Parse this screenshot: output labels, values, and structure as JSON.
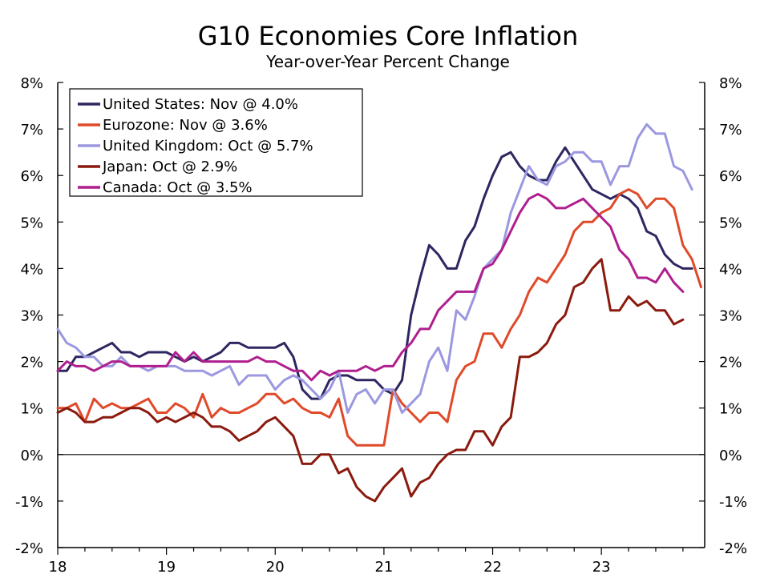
{
  "chart_data": {
    "type": "line",
    "title": "G10 Economies Core Inflation",
    "subtitle": "Year-over-Year Percent Change",
    "xlabel": "",
    "ylabel": "",
    "ylim": [
      -2,
      8
    ],
    "xlim": [
      2018.0,
      2023.95
    ],
    "x_ticks": [
      {
        "value": 2018,
        "label": "18"
      },
      {
        "value": 2019,
        "label": "19"
      },
      {
        "value": 2020,
        "label": "20"
      },
      {
        "value": 2021,
        "label": "21"
      },
      {
        "value": 2022,
        "label": "22"
      },
      {
        "value": 2023,
        "label": "23"
      }
    ],
    "y_ticks": [
      {
        "value": 8,
        "label": "8%"
      },
      {
        "value": 7,
        "label": "7%"
      },
      {
        "value": 6,
        "label": "6%"
      },
      {
        "value": 5,
        "label": "5%"
      },
      {
        "value": 4,
        "label": "4%"
      },
      {
        "value": 3,
        "label": "3%"
      },
      {
        "value": 2,
        "label": "2%"
      },
      {
        "value": 1,
        "label": "1%"
      },
      {
        "value": 0,
        "label": "0%"
      },
      {
        "value": -1,
        "label": "-1%"
      },
      {
        "value": -2,
        "label": "-2%"
      }
    ],
    "legend_position": "top-left",
    "zero_line": true,
    "series": [
      {
        "name": "United States: Nov @ 4.0%",
        "color": "#2e2660",
        "start": 2018.0,
        "values": [
          1.8,
          1.8,
          2.1,
          2.1,
          2.2,
          2.3,
          2.4,
          2.2,
          2.2,
          2.1,
          2.2,
          2.2,
          2.2,
          2.1,
          2.0,
          2.1,
          2.0,
          2.1,
          2.2,
          2.4,
          2.4,
          2.3,
          2.3,
          2.3,
          2.3,
          2.4,
          2.1,
          1.4,
          1.2,
          1.2,
          1.6,
          1.7,
          1.7,
          1.6,
          1.6,
          1.6,
          1.4,
          1.3,
          1.6,
          3.0,
          3.8,
          4.5,
          4.3,
          4.0,
          4.0,
          4.6,
          4.9,
          5.5,
          6.0,
          6.4,
          6.5,
          6.2,
          6.0,
          5.9,
          5.9,
          6.3,
          6.6,
          6.3,
          6.0,
          5.7,
          5.6,
          5.5,
          5.6,
          5.5,
          5.3,
          4.8,
          4.7,
          4.3,
          4.1,
          4.0,
          4.0
        ]
      },
      {
        "name": "Eurozone: Nov @ 3.6%",
        "color": "#e04a2a",
        "start": 2018.0,
        "values": [
          1.0,
          1.0,
          1.1,
          0.7,
          1.2,
          1.0,
          1.1,
          1.0,
          1.0,
          1.1,
          1.2,
          0.9,
          0.9,
          1.1,
          1.0,
          0.8,
          1.3,
          0.8,
          1.0,
          0.9,
          0.9,
          1.0,
          1.1,
          1.3,
          1.3,
          1.1,
          1.2,
          1.0,
          0.9,
          0.9,
          0.8,
          1.2,
          0.4,
          0.2,
          0.2,
          0.2,
          0.2,
          1.4,
          1.1,
          0.9,
          0.7,
          0.9,
          0.9,
          0.7,
          1.6,
          1.9,
          2.0,
          2.6,
          2.6,
          2.3,
          2.7,
          3.0,
          3.5,
          3.8,
          3.7,
          4.0,
          4.3,
          4.8,
          5.0,
          5.0,
          5.2,
          5.3,
          5.6,
          5.7,
          5.6,
          5.3,
          5.5,
          5.5,
          5.3,
          4.5,
          4.2,
          3.6
        ]
      },
      {
        "name": "United Kingdom: Oct @ 5.7%",
        "color": "#9b98e0",
        "start": 2018.0,
        "values": [
          2.7,
          2.4,
          2.3,
          2.1,
          2.1,
          1.9,
          1.9,
          2.1,
          1.9,
          1.9,
          1.8,
          1.9,
          1.9,
          1.9,
          1.8,
          1.8,
          1.8,
          1.7,
          1.8,
          1.9,
          1.5,
          1.7,
          1.7,
          1.7,
          1.4,
          1.6,
          1.7,
          1.6,
          1.4,
          1.2,
          1.4,
          1.8,
          0.9,
          1.3,
          1.4,
          1.1,
          1.4,
          1.4,
          0.9,
          1.1,
          1.3,
          2.0,
          2.3,
          1.8,
          3.1,
          2.9,
          3.4,
          4.0,
          4.2,
          4.4,
          5.2,
          5.7,
          6.2,
          5.9,
          5.8,
          6.2,
          6.3,
          6.5,
          6.5,
          6.3,
          6.3,
          5.8,
          6.2,
          6.2,
          6.8,
          7.1,
          6.9,
          6.9,
          6.2,
          6.1,
          5.7
        ]
      },
      {
        "name": "Japan: Oct @ 2.9%",
        "color": "#8b1a0e",
        "start": 2018.0,
        "values": [
          0.9,
          1.0,
          0.9,
          0.7,
          0.7,
          0.8,
          0.8,
          0.9,
          1.0,
          1.0,
          0.9,
          0.7,
          0.8,
          0.7,
          0.8,
          0.9,
          0.8,
          0.6,
          0.6,
          0.5,
          0.3,
          0.4,
          0.5,
          0.7,
          0.8,
          0.6,
          0.4,
          -0.2,
          -0.2,
          0.0,
          0.0,
          -0.4,
          -0.3,
          -0.7,
          -0.9,
          -1.0,
          -0.7,
          -0.5,
          -0.3,
          -0.9,
          -0.6,
          -0.5,
          -0.2,
          0.0,
          0.1,
          0.1,
          0.5,
          0.5,
          0.2,
          0.6,
          0.8,
          2.1,
          2.1,
          2.2,
          2.4,
          2.8,
          3.0,
          3.6,
          3.7,
          4.0,
          4.2,
          3.1,
          3.1,
          3.4,
          3.2,
          3.3,
          3.1,
          3.1,
          2.8,
          2.9
        ]
      },
      {
        "name": "Canada: Oct @ 3.5%",
        "color": "#b01f8e",
        "start": 2018.0,
        "values": [
          1.8,
          2.0,
          1.9,
          1.9,
          1.8,
          1.9,
          2.0,
          2.0,
          1.9,
          1.9,
          1.9,
          1.9,
          1.9,
          2.2,
          2.0,
          2.2,
          2.0,
          2.0,
          2.0,
          2.0,
          2.0,
          2.0,
          2.1,
          2.0,
          2.0,
          1.9,
          1.8,
          1.8,
          1.6,
          1.8,
          1.7,
          1.8,
          1.8,
          1.8,
          1.9,
          1.8,
          1.9,
          1.9,
          2.2,
          2.4,
          2.7,
          2.7,
          3.1,
          3.3,
          3.5,
          3.5,
          3.5,
          4.0,
          4.1,
          4.4,
          4.8,
          5.2,
          5.5,
          5.6,
          5.5,
          5.3,
          5.3,
          5.4,
          5.5,
          5.3,
          5.1,
          4.9,
          4.4,
          4.2,
          3.8,
          3.8,
          3.7,
          4.0,
          3.7,
          3.5
        ]
      }
    ]
  }
}
